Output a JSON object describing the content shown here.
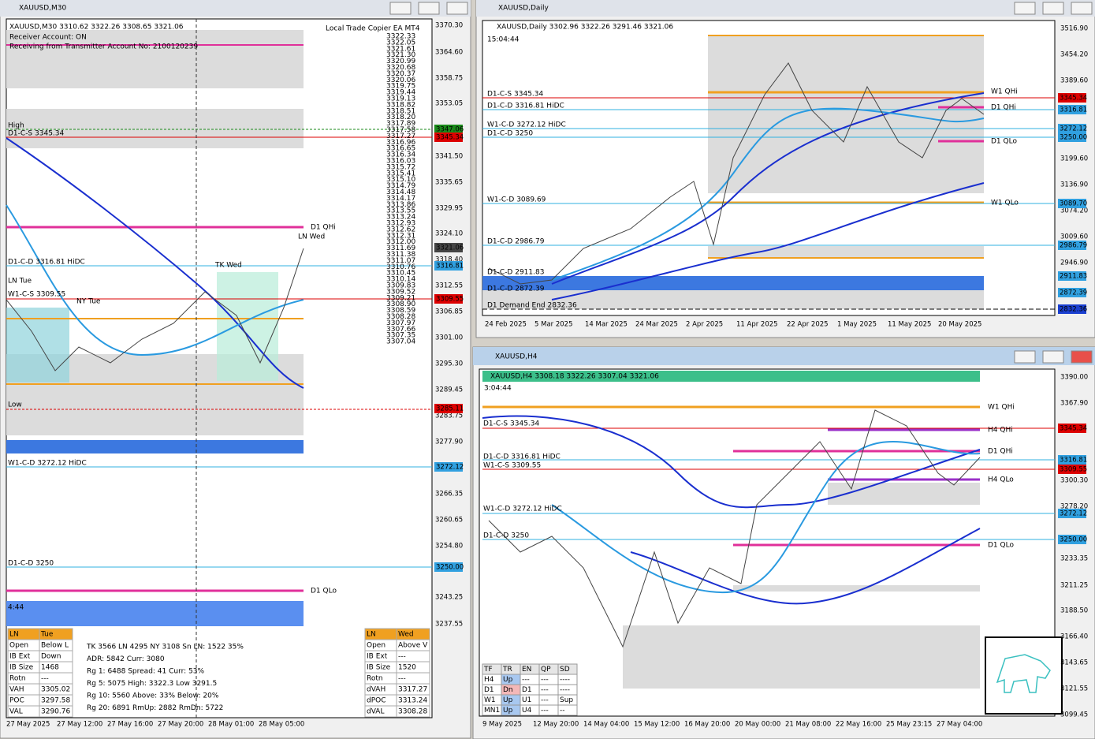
{
  "windows": [
    {
      "title": "XAUUSD,M30",
      "header": "XAUUSD,M30  3310.62 3322.26 3308.65 3321.06",
      "ea_name": "Local Trade Copier EA MT4",
      "info": [
        "Receiver Account: ON",
        "Receiving from Transmitter Account No: 2100120239"
      ],
      "price_axis": [
        "3370.30",
        "3364.60",
        "3358.75",
        "3353.05",
        "3341.50",
        "3335.65",
        "3329.95",
        "3324.10",
        "3318.40",
        "3312.55",
        "3306.85",
        "3301.00",
        "3295.30",
        "3289.45",
        "3283.75",
        "3277.90",
        "3266.35",
        "3260.65",
        "3254.80",
        "3243.25",
        "3237.55"
      ],
      "price_tags": [
        "3347.06",
        "3345.34",
        "3321.06",
        "3316.81",
        "3309.55",
        "3285.11",
        "3272.12",
        "3250.00"
      ],
      "time_axis": [
        "27 May 2025",
        "27 May 12:00",
        "27 May 16:00",
        "27 May 20:00",
        "28 May 01:00",
        "28 May 05:00"
      ],
      "labels": [
        "High",
        "D1-C-S 3345.34",
        "D1 QHi",
        "LN Wed",
        "D1-C-D 3316.81 HiDC",
        "TK Wed",
        "LN Tue",
        "W1-C-S 3309.55",
        "NY Tue",
        "Low",
        "W1-C-D 3272.12 HiDC",
        "D1-C-D 3250",
        "D1 QLo"
      ],
      "timer": "4:44",
      "ladder": [
        "3322.33",
        "3322.05",
        "3321.61",
        "3321.30",
        "3320.99",
        "3320.68",
        "3320.37",
        "3320.06",
        "3319.75",
        "3319.44",
        "3319.13",
        "3318.82",
        "3318.51",
        "3318.20",
        "3317.89",
        "3317.58",
        "3317.27",
        "3316.96",
        "3316.65",
        "3316.34",
        "3316.03",
        "3315.72",
        "3315.41",
        "3315.10",
        "3314.79",
        "3314.48",
        "3314.17",
        "3313.86",
        "3313.55",
        "3313.24",
        "3312.93",
        "3312.62",
        "3312.31",
        "3312.00",
        "3311.69",
        "3311.38",
        "3311.07",
        "3310.76",
        "3310.45",
        "3310.14",
        "3309.83",
        "3309.52",
        "3309.21",
        "3308.90",
        "3308.59",
        "3308.28",
        "3307.97",
        "3307.66",
        "3307.35",
        "3307.04"
      ],
      "session_left": [
        [
          "LN",
          "Tue"
        ],
        [
          "Open",
          "Below L"
        ],
        [
          "IB Ext",
          "Down"
        ],
        [
          "IB Size",
          "1468"
        ],
        [
          "Rotn",
          "---"
        ],
        [
          "VAH",
          "3305.02"
        ],
        [
          "POC",
          "3297.58"
        ],
        [
          "VAL",
          "3290.76"
        ]
      ],
      "stats": [
        "TK 3566  LN 4295  NY 3108     Sn LN: 1522   35%",
        "ADR:  5842    Curr:  3080",
        "Rg  1:  6488   Spread:  41    Curr:   53%",
        "Rg  5:  5075   High: 3322.3    Low  3291.5",
        "Rg 10:  5560   Above:  33%    Below:  20%",
        "Rg 20:  6891   RmUp: 2882    RmDn: 5722"
      ],
      "session_right": [
        [
          "LN",
          "Wed"
        ],
        [
          "Open",
          "Above V"
        ],
        [
          "IB Ext",
          "---"
        ],
        [
          "IB Size",
          "1520"
        ],
        [
          "Rotn",
          "---"
        ],
        [
          "dVAH",
          "3317.27"
        ],
        [
          "dPOC",
          "3313.24"
        ],
        [
          "dVAL",
          "3308.28"
        ]
      ]
    },
    {
      "title": "XAUUSD,Daily",
      "header": "XAUUSD,Daily  3302.96 3322.26 3291.46 3321.06",
      "timer": "15:04:44",
      "price_axis": [
        "3516.90",
        "3454.20",
        "3389.60",
        "3199.60",
        "3136.90",
        "3074.20",
        "3009.60",
        "2946.90"
      ],
      "price_tags": [
        "3345.34",
        "3316.81",
        "3272.12",
        "3250.00",
        "3089.70",
        "2986.79",
        "2911.83",
        "2872.39",
        "2832.36"
      ],
      "time_axis": [
        "24 Feb 2025",
        "5 Mar 2025",
        "14 Mar 2025",
        "24 Mar 2025",
        "2 Apr 2025",
        "11 Apr 2025",
        "22 Apr 2025",
        "1 May 2025",
        "11 May 2025",
        "20 May 2025"
      ],
      "labels": [
        "D1-C-S 3345.34",
        "D1-C-D 3316.81 HiDC",
        "W1-C-D 3272.12 HiDC",
        "D1-C-D 3250",
        "W1-C-D 3089.69",
        "D1-C-D 2986.79",
        "D1-C-D 2911.83",
        "D1-C-D 2872.39",
        "D1 Demand End 2832.36",
        "W1 QHi",
        "D1 QHi",
        "D1 QLo",
        "W1 QLo"
      ]
    },
    {
      "title": "XAUUSD,H4",
      "header": "XAUUSD,H4  3308.18 3322.26 3307.04 3321.06",
      "timer": "3:04:44",
      "price_axis": [
        "3390.00",
        "3367.90",
        "3300.30",
        "3278.20",
        "3233.35",
        "3211.25",
        "3188.50",
        "3166.40",
        "3143.65",
        "3121.55",
        "3099.45"
      ],
      "price_tags": [
        "3345.34",
        "3316.81",
        "3309.55",
        "3272.12",
        "3250.00"
      ],
      "time_axis": [
        "9 May 2025",
        "12 May 20:00",
        "14 May 04:00",
        "15 May 12:00",
        "16 May 20:00",
        "20 May 00:00",
        "21 May 08:00",
        "22 May 16:00",
        "25 May 23:15",
        "27 May 04:00"
      ],
      "labels": [
        "D1-C-S 3345.34",
        "D1-C-D 3316.81 HiDC",
        "W1-C-S 3309.55",
        "W1-C-D 3272.12 HiDC",
        "D1-C-D 3250",
        "W1 QHi",
        "H4 QHi",
        "D1 QHi",
        "H4 QLo",
        "D1 QLo"
      ],
      "trend_table": [
        [
          "TF",
          "TR",
          "EN",
          "QP",
          "SD"
        ],
        [
          "H4",
          "Up",
          "---",
          "---",
          "----"
        ],
        [
          "D1",
          "Dn",
          "D1",
          "---",
          "----"
        ],
        [
          "W1",
          "Up",
          "U1",
          "---",
          "Sup"
        ],
        [
          "MN1",
          "Up",
          "U4",
          "---",
          "--"
        ]
      ]
    }
  ]
}
